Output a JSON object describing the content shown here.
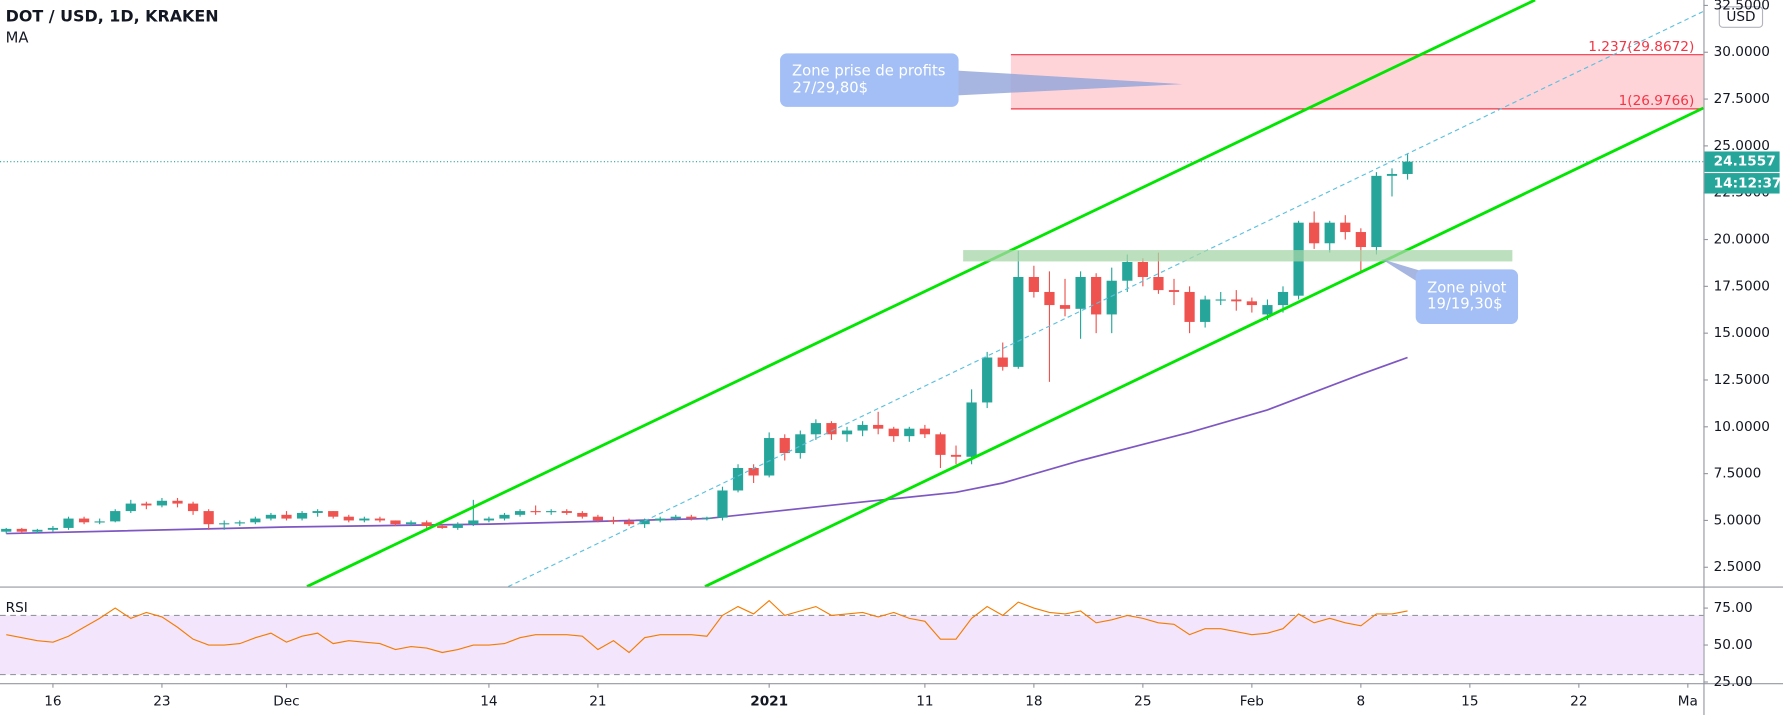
{
  "chart_data": {
    "type": "candlestick",
    "title": "DOT / USD, 1D, KRAKEN",
    "currency": "USD",
    "last_price": 24.1557,
    "countdown": "14:12:37",
    "up_color": "#26a69a",
    "down_color": "#ef5350",
    "xlim": [
      -0.4,
      109.0
    ],
    "xticks": [
      {
        "value": 3,
        "label": "16"
      },
      {
        "value": 10,
        "label": "23"
      },
      {
        "value": 18,
        "label": "Dec"
      },
      {
        "value": 31,
        "label": "14"
      },
      {
        "value": 38,
        "label": "21"
      },
      {
        "value": 49,
        "label": "2021"
      },
      {
        "value": 59,
        "label": "11"
      },
      {
        "value": 66,
        "label": "18"
      },
      {
        "value": 73,
        "label": "25"
      },
      {
        "value": 80,
        "label": "Feb"
      },
      {
        "value": 87,
        "label": "8"
      },
      {
        "value": 94,
        "label": "15"
      },
      {
        "value": 101,
        "label": "22"
      },
      {
        "value": 108,
        "label": "Ma"
      }
    ],
    "ylim": [
      1.47,
      32.79
    ],
    "yticks": [
      {
        "value": 2.5,
        "label": "2.5000"
      },
      {
        "value": 5,
        "label": "5.0000"
      },
      {
        "value": 7.5,
        "label": "7.5000"
      },
      {
        "value": 10,
        "label": "10.0000"
      },
      {
        "value": 12.5,
        "label": "12.5000"
      },
      {
        "value": 15,
        "label": "15.0000"
      },
      {
        "value": 17.5,
        "label": "17.5000"
      },
      {
        "value": 20,
        "label": "20.0000"
      },
      {
        "value": 22.5,
        "label": "22.5000"
      },
      {
        "value": 25,
        "label": "25.0000"
      },
      {
        "value": 27.5,
        "label": "27.5000"
      },
      {
        "value": 30,
        "label": "30.0000"
      },
      {
        "value": 32.5,
        "label": "32.5000"
      }
    ],
    "open": [
      4.4,
      4.55,
      4.4,
      4.5,
      4.6,
      5.1,
      4.9,
      4.95,
      5.5,
      5.9,
      5.8,
      6.05,
      5.9,
      5.5,
      4.8,
      4.85,
      4.9,
      5.1,
      5.3,
      5.1,
      5.4,
      5.5,
      5.2,
      5.0,
      5.1,
      5.0,
      4.8,
      4.9,
      4.7,
      4.6,
      4.8,
      5.0,
      5.1,
      5.3,
      5.5,
      5.45,
      5.5,
      5.4,
      5.2,
      5.0,
      4.95,
      4.8,
      5.0,
      5.1,
      5.2,
      5.1,
      5.15,
      6.6,
      7.8,
      7.4,
      9.4,
      8.6,
      9.6,
      10.2,
      9.6,
      9.8,
      10.1,
      9.9,
      9.5,
      9.9,
      9.6,
      8.5,
      8.4,
      11.3,
      13.7,
      13.2,
      18.0,
      17.2,
      16.5,
      16.3,
      18.0,
      16.0,
      17.8,
      18.8,
      18.0,
      17.3,
      17.2,
      15.6,
      16.8,
      16.8,
      16.7,
      16.0,
      16.5,
      17.0,
      20.9,
      19.8,
      20.9,
      20.4,
      19.6,
      23.4,
      23.5
    ],
    "high": [
      4.6,
      4.6,
      4.55,
      4.7,
      5.2,
      5.2,
      5.1,
      5.6,
      6.1,
      6.0,
      6.2,
      6.2,
      6.0,
      5.6,
      5.0,
      5.0,
      5.2,
      5.4,
      5.5,
      5.5,
      5.6,
      5.5,
      5.3,
      5.2,
      5.2,
      5.0,
      5.0,
      5.0,
      4.8,
      4.9,
      6.1,
      5.2,
      5.4,
      5.6,
      5.8,
      5.6,
      5.6,
      5.5,
      5.3,
      5.2,
      5.1,
      5.1,
      5.2,
      5.3,
      5.3,
      5.2,
      6.8,
      8.0,
      8.0,
      9.7,
      9.6,
      9.8,
      10.4,
      10.3,
      10.0,
      10.3,
      10.8,
      10.0,
      10.0,
      10.1,
      9.7,
      9.0,
      12.0,
      14.0,
      14.5,
      19.4,
      18.6,
      18.3,
      17.9,
      18.3,
      18.2,
      18.5,
      19.2,
      19.0,
      19.3,
      17.9,
      17.5,
      17.0,
      17.2,
      17.3,
      16.9,
      16.8,
      17.5,
      21.0,
      21.5,
      21.0,
      21.3,
      20.6,
      23.6,
      23.8,
      24.6
    ],
    "low": [
      4.3,
      4.3,
      4.3,
      4.4,
      4.5,
      4.8,
      4.8,
      4.9,
      5.4,
      5.6,
      5.7,
      5.7,
      5.3,
      4.5,
      4.5,
      4.7,
      4.8,
      5.0,
      5.0,
      5.0,
      5.2,
      5.1,
      4.9,
      4.9,
      4.9,
      4.7,
      4.7,
      4.6,
      4.55,
      4.5,
      4.7,
      4.9,
      5.0,
      5.2,
      5.3,
      5.3,
      5.3,
      5.1,
      4.9,
      4.8,
      4.7,
      4.6,
      4.9,
      5.0,
      5.0,
      5.0,
      5.0,
      6.5,
      7.0,
      7.3,
      8.2,
      8.3,
      9.3,
      9.3,
      9.2,
      9.5,
      9.6,
      9.2,
      9.2,
      9.4,
      7.8,
      8.0,
      8.0,
      11.0,
      13.0,
      13.1,
      16.9,
      12.4,
      15.9,
      14.7,
      15.0,
      15.0,
      17.2,
      17.5,
      17.1,
      16.5,
      15.0,
      15.3,
      16.5,
      16.2,
      16.1,
      15.7,
      16.1,
      16.8,
      19.5,
      19.3,
      20.0,
      18.2,
      19.2,
      22.3,
      23.2
    ],
    "close": [
      4.55,
      4.4,
      4.5,
      4.6,
      5.1,
      4.9,
      4.95,
      5.5,
      5.9,
      5.8,
      6.05,
      5.9,
      5.5,
      4.8,
      4.85,
      4.9,
      5.1,
      5.3,
      5.1,
      5.4,
      5.5,
      5.2,
      5.0,
      5.1,
      5.0,
      4.8,
      4.9,
      4.7,
      4.6,
      4.8,
      5.0,
      5.1,
      5.3,
      5.5,
      5.45,
      5.5,
      5.4,
      5.2,
      5.0,
      4.95,
      4.8,
      5.0,
      5.1,
      5.2,
      5.1,
      5.15,
      6.6,
      7.8,
      7.4,
      9.4,
      8.6,
      9.6,
      10.2,
      9.6,
      9.8,
      10.1,
      9.9,
      9.5,
      9.9,
      9.6,
      8.5,
      8.4,
      11.3,
      13.7,
      13.2,
      18.0,
      17.2,
      16.5,
      16.3,
      18.0,
      16.0,
      17.8,
      18.8,
      18.0,
      17.3,
      17.2,
      15.6,
      16.8,
      16.8,
      16.7,
      16.5,
      16.5,
      17.2,
      20.9,
      19.8,
      20.9,
      20.4,
      19.6,
      23.4,
      23.5,
      24.1557
    ],
    "ma": {
      "name": "MA",
      "color": "#7e57c2",
      "x": [
        0,
        18,
        31,
        45,
        54,
        61,
        64,
        69,
        76,
        81,
        87,
        90
      ],
      "values": [
        4.3,
        4.65,
        4.8,
        5.1,
        5.9,
        6.5,
        7.0,
        8.2,
        9.7,
        10.9,
        12.8,
        13.7
      ]
    },
    "fib": [
      {
        "value": 26.9766,
        "label": "1(26.9766)"
      },
      {
        "value": 29.8672,
        "label": "1.237(29.8672)"
      }
    ],
    "annotations": [
      {
        "lines": [
          "Zone prise de profits",
          "27/29,80$"
        ]
      },
      {
        "lines": [
          "Zone pivot",
          "19/19,30$"
        ]
      }
    ],
    "rsi": {
      "name": "RSI",
      "color": "#f57c00",
      "ylim": [
        24.2,
        88.8
      ],
      "upper": 70,
      "lower": 30,
      "yticks": [
        {
          "value": 25,
          "label": "25.00"
        },
        {
          "value": 50,
          "label": "50.00"
        },
        {
          "value": 75,
          "label": "75.00"
        }
      ],
      "values": [
        57,
        55,
        53,
        52,
        56,
        62,
        68,
        75,
        68,
        72,
        69,
        62,
        54,
        50,
        50,
        51,
        55,
        58,
        52,
        56,
        58,
        51,
        53,
        52,
        51,
        47,
        49,
        48,
        45,
        47,
        50,
        50,
        51,
        55,
        57,
        57,
        57,
        56,
        47,
        53,
        45,
        55,
        57,
        57,
        57,
        56,
        70,
        76,
        71,
        80,
        70,
        73,
        76,
        70,
        71,
        72,
        69,
        72,
        68,
        66,
        54,
        54,
        68,
        76,
        70,
        79,
        75,
        72,
        71,
        73,
        65,
        67,
        70,
        68,
        65,
        64,
        57,
        61,
        61,
        59,
        57,
        58,
        61,
        71,
        65,
        68,
        65,
        63,
        71,
        71,
        73
      ]
    }
  }
}
